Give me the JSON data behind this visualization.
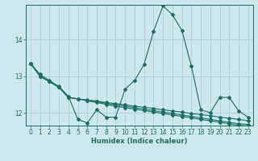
{
  "xlabel": "Humidex (Indice chaleur)",
  "bg_color": "#cce8ec",
  "grid_color": "#aacfd4",
  "line_color": "#1a6e64",
  "xlim": [
    -0.5,
    23.5
  ],
  "ylim": [
    11.65,
    14.95
  ],
  "yticks": [
    12,
    13,
    14
  ],
  "xticks": [
    0,
    1,
    2,
    3,
    4,
    5,
    6,
    7,
    8,
    9,
    10,
    11,
    12,
    13,
    14,
    15,
    16,
    17,
    18,
    19,
    20,
    21,
    22,
    23
  ],
  "lines": [
    [
      13.35,
      13.05,
      12.88,
      12.72,
      12.45,
      11.82,
      11.72,
      12.08,
      11.88,
      11.88,
      12.65,
      12.88,
      13.32,
      14.22,
      14.92,
      14.68,
      14.25,
      13.28,
      12.08,
      12.0,
      12.42,
      12.42,
      12.05,
      11.88
    ],
    [
      13.35,
      13.0,
      12.85,
      12.7,
      12.42,
      12.38,
      12.35,
      12.32,
      12.28,
      12.25,
      12.22,
      12.18,
      12.15,
      12.12,
      12.08,
      12.05,
      12.02,
      11.98,
      11.95,
      11.92,
      11.88,
      11.85,
      11.82,
      11.78
    ],
    [
      13.35,
      13.0,
      12.85,
      12.7,
      12.42,
      12.38,
      12.34,
      12.3,
      12.26,
      12.22,
      12.18,
      12.14,
      12.1,
      12.06,
      12.02,
      11.98,
      11.94,
      11.9,
      11.86,
      11.82,
      11.78,
      11.74,
      11.7,
      11.68
    ],
    [
      13.35,
      13.0,
      12.85,
      12.7,
      12.42,
      12.38,
      12.33,
      12.28,
      12.23,
      12.18,
      12.14,
      12.1,
      12.06,
      12.02,
      11.98,
      11.94,
      11.9,
      11.86,
      11.82,
      11.78,
      11.74,
      11.7,
      11.66,
      11.64
    ]
  ]
}
